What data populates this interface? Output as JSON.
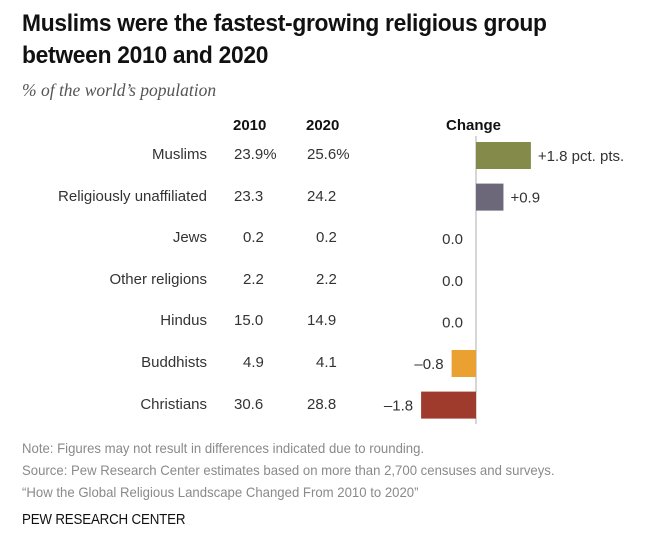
{
  "title_line1": "Muslims were the fastest-growing religious group",
  "title_line2": "between 2010 and 2020",
  "subtitle": "% of the world’s population",
  "chart_data": {
    "type": "bar",
    "orientation": "horizontal",
    "title": "Muslims were the fastest-growing religious group between 2010 and 2020",
    "subtitle": "% of the world’s population",
    "columns": [
      "2010",
      "2020",
      "Change"
    ],
    "categories": [
      "Muslims",
      "Religiously unaffiliated",
      "Jews",
      "Other religions",
      "Hindus",
      "Buddhists",
      "Christians"
    ],
    "values_2010": [
      23.9,
      23.3,
      0.2,
      2.2,
      15.0,
      4.9,
      30.6
    ],
    "values_2010_labels": [
      "23.9%",
      "23.3",
      "0.2",
      "2.2",
      "15.0",
      "4.9",
      "30.6"
    ],
    "values_2020": [
      25.6,
      24.2,
      0.2,
      2.2,
      14.9,
      4.1,
      28.8
    ],
    "values_2020_labels": [
      "25.6%",
      "24.2",
      "0.2",
      "2.2",
      "14.9",
      "4.1",
      "28.8"
    ],
    "change": [
      1.8,
      0.9,
      0.0,
      0.0,
      0.0,
      -0.8,
      -1.8
    ],
    "change_labels": [
      "+1.8 pct. pts.",
      "+0.9",
      "0.0",
      "0.0",
      "0.0",
      "–0.8",
      "–1.8"
    ],
    "colors": [
      "#848b4a",
      "#6d6879",
      "#cccccc",
      "#cccccc",
      "#cccccc",
      "#eba032",
      "#9e3b2c"
    ],
    "xlim": [
      -1.8,
      1.8
    ],
    "grid": false,
    "legend": "none"
  },
  "headers": {
    "y2010": "2010",
    "y2020": "2020",
    "change": "Change"
  },
  "note": "Note: Figures may not result in differences indicated due to rounding.",
  "source": "Source: Pew Research Center estimates based on more than 2,700 censuses and surveys.",
  "report": "“How the Global Religious Landscape Changed From 2010 to 2020”",
  "brand": "PEW RESEARCH CENTER"
}
